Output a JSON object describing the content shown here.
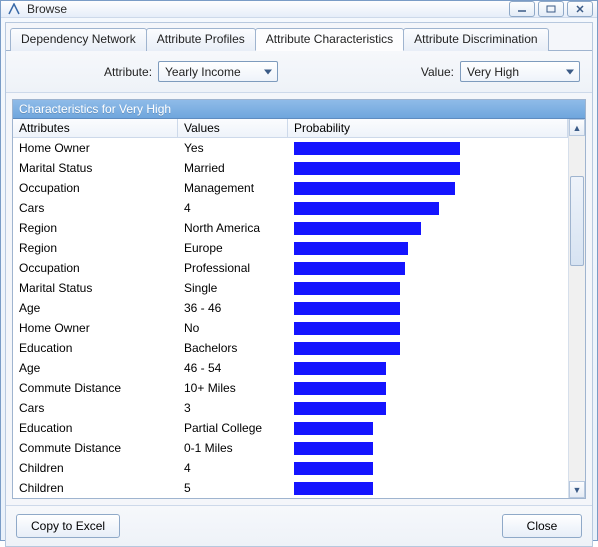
{
  "window": {
    "title": "Browse"
  },
  "tabs": [
    {
      "label": "Dependency Network",
      "active": false
    },
    {
      "label": "Attribute Profiles",
      "active": false
    },
    {
      "label": "Attribute Characteristics",
      "active": true
    },
    {
      "label": "Attribute Discrimination",
      "active": false
    }
  ],
  "controls": {
    "attribute_label": "Attribute:",
    "attribute_value": "Yearly Income",
    "value_label": "Value:",
    "value_value": "Very High"
  },
  "grid": {
    "title": "Characteristics for Very High",
    "columns": {
      "attributes": "Attributes",
      "values": "Values",
      "probability": "Probability"
    },
    "bar_color": "#1414ff",
    "rows": [
      {
        "attr": "Home Owner",
        "val": "Yes",
        "prob": 63
      },
      {
        "attr": "Marital Status",
        "val": "Married",
        "prob": 63
      },
      {
        "attr": "Occupation",
        "val": "Management",
        "prob": 61
      },
      {
        "attr": "Cars",
        "val": "4",
        "prob": 55
      },
      {
        "attr": "Region",
        "val": "North America",
        "prob": 48
      },
      {
        "attr": "Region",
        "val": "Europe",
        "prob": 43
      },
      {
        "attr": "Occupation",
        "val": "Professional",
        "prob": 42
      },
      {
        "attr": "Marital Status",
        "val": "Single",
        "prob": 40
      },
      {
        "attr": "Age",
        "val": "36 - 46",
        "prob": 40
      },
      {
        "attr": "Home Owner",
        "val": "No",
        "prob": 40
      },
      {
        "attr": "Education",
        "val": "Bachelors",
        "prob": 40
      },
      {
        "attr": "Age",
        "val": "46 - 54",
        "prob": 35
      },
      {
        "attr": "Commute Distance",
        "val": "10+ Miles",
        "prob": 35
      },
      {
        "attr": "Cars",
        "val": "3",
        "prob": 35
      },
      {
        "attr": "Education",
        "val": "Partial College",
        "prob": 30
      },
      {
        "attr": "Commute Distance",
        "val": "0-1 Miles",
        "prob": 30
      },
      {
        "attr": "Children",
        "val": "4",
        "prob": 30
      },
      {
        "attr": "Children",
        "val": "5",
        "prob": 30
      }
    ]
  },
  "footer": {
    "copy_label": "Copy to Excel",
    "close_label": "Close"
  }
}
